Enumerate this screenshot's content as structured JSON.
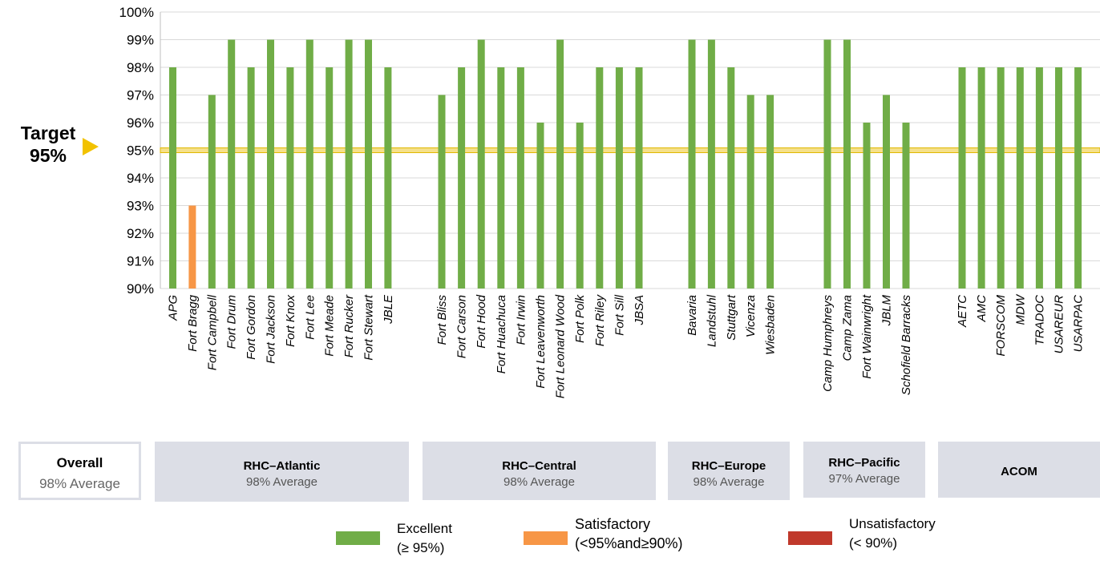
{
  "target": {
    "line1": "Target",
    "line2": "95%",
    "value": 95,
    "color": "#f2c200"
  },
  "chart_data": {
    "type": "bar",
    "ylim": [
      90,
      100
    ],
    "yticks": [
      "90%",
      "91%",
      "92%",
      "93%",
      "94%",
      "95%",
      "96%",
      "97%",
      "98%",
      "99%",
      "100%"
    ],
    "colors": {
      "excellent": "#70ad47",
      "satisfactory": "#f79646",
      "unsatisfactory": "#c0392b"
    },
    "groups": [
      {
        "name": "RHC–Atlantic",
        "average": "98% Average",
        "categories": [
          "APG",
          "Fort Bragg",
          "Fort Campbell",
          "Fort Drum",
          "Fort Gordon",
          "Fort Jackson",
          "Fort Knox",
          "Fort Lee",
          "Fort Meade",
          "Fort Rucker",
          "Fort Stewart",
          "JBLE"
        ],
        "values": [
          98,
          93,
          97,
          99,
          98,
          99,
          98,
          99,
          98,
          99,
          99,
          98
        ]
      },
      {
        "name": "RHC–Central",
        "average": "98% Average",
        "categories": [
          "Fort Bliss",
          "Fort Carson",
          "Fort Hood",
          "Fort Huachuca",
          "Fort Irwin",
          "Fort Leavenworth",
          "Fort Leonard Wood",
          "Fort Polk",
          "Fort Riley",
          "Fort Sill",
          "JBSA"
        ],
        "values": [
          97,
          98,
          99,
          98,
          98,
          96,
          99,
          96,
          98,
          98,
          98
        ]
      },
      {
        "name": "RHC–Europe",
        "average": "98% Average",
        "categories": [
          "Bavaria",
          "Landstuhl",
          "Stuttgart",
          "Vicenza",
          "Wiesbaden"
        ],
        "values": [
          99,
          99,
          98,
          97,
          97
        ]
      },
      {
        "name": "RHC–Pacific",
        "average": "97% Average",
        "categories": [
          "Camp Humphreys",
          "Camp Zama",
          "Fort Wainwright",
          "JBLM",
          "Schofield Barracks"
        ],
        "values": [
          99,
          99,
          96,
          97,
          96
        ]
      },
      {
        "name": "ACOM",
        "average": "",
        "categories": [
          "AETC",
          "AMC",
          "FORSCOM",
          "MDW",
          "TRADOC",
          "USAREUR",
          "USARPAC"
        ],
        "values": [
          98,
          98,
          98,
          98,
          98,
          98,
          98
        ]
      }
    ]
  },
  "overall": {
    "label": "Overall",
    "average": "98% Average"
  },
  "legend": [
    {
      "key": "excellent",
      "line1": "Excellent",
      "line2": "(≥ 95%)"
    },
    {
      "key": "satisfactory",
      "line1": "Satisfactory",
      "line2": "(<95%and≥90%)"
    },
    {
      "key": "unsatisfactory",
      "line1": "Unsatisfactory",
      "line2": "(< 90%)"
    }
  ]
}
